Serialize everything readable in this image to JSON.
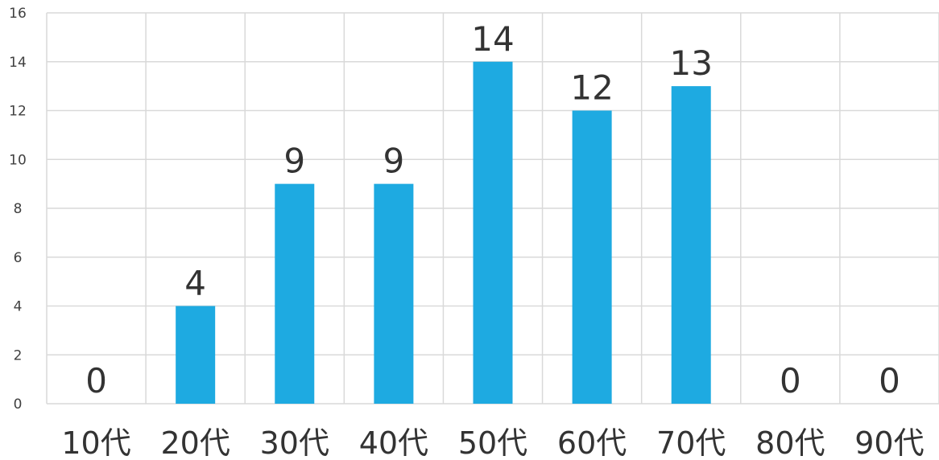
{
  "chart_data": {
    "type": "bar",
    "categories": [
      "10代",
      "20代",
      "30代",
      "40代",
      "50代",
      "60代",
      "70代",
      "80代",
      "90代"
    ],
    "values": [
      0,
      4,
      9,
      9,
      14,
      12,
      13,
      0,
      0
    ],
    "data_labels": [
      "0",
      "4",
      "9",
      "9",
      "14",
      "12",
      "13",
      "0",
      "0"
    ],
    "y_ticks": [
      "0",
      "2",
      "4",
      "6",
      "8",
      "10",
      "12",
      "14",
      "16"
    ],
    "ylim": [
      0,
      16
    ],
    "grid": true,
    "bar_color": "#1EAAE1",
    "title": "",
    "xlabel": "",
    "ylabel": ""
  }
}
